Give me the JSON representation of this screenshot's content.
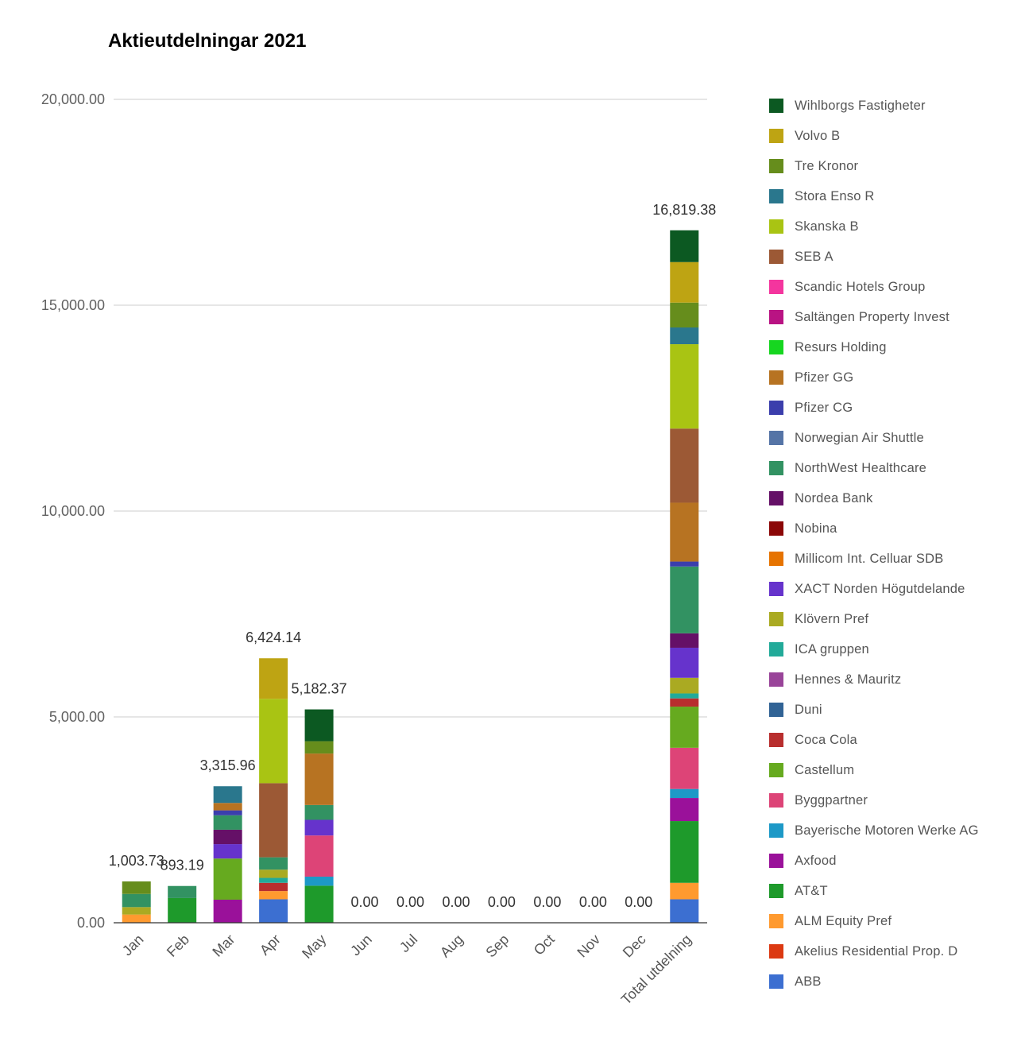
{
  "chart_data": {
    "type": "bar",
    "stacked": true,
    "title": "Aktieutdelningar 2021",
    "categories": [
      "Jan",
      "Feb",
      "Mar",
      "Apr",
      "May",
      "Jun",
      "Jul",
      "Aug",
      "Sep",
      "Oct",
      "Nov",
      "Dec",
      "Total utdelning"
    ],
    "totals": [
      "1,003.73",
      "893.19",
      "3,315.96",
      "6,424.14",
      "5,182.37",
      "0.00",
      "0.00",
      "0.00",
      "0.00",
      "0.00",
      "0.00",
      "0.00",
      "16,819.38"
    ],
    "y_ticks": [
      "0.00",
      "5,000.00",
      "10,000.00",
      "15,000.00",
      "20,000.00"
    ],
    "ylim": [
      0,
      20000
    ],
    "legend_position": "right",
    "grid": true,
    "series": [
      {
        "name": "ABB",
        "color": "#3c6fd1",
        "values": [
          0,
          0,
          0,
          570,
          0,
          0,
          0,
          0,
          0,
          0,
          0,
          0,
          570
        ]
      },
      {
        "name": "Akelius Residential Prop. D",
        "color": "#dc3912",
        "values": [
          0,
          0,
          0,
          0,
          0,
          0,
          0,
          0,
          0,
          0,
          0,
          0,
          0
        ]
      },
      {
        "name": "ALM Equity Pref",
        "color": "#ff9a2f",
        "values": [
          200,
          0,
          0,
          200,
          0,
          0,
          0,
          0,
          0,
          0,
          0,
          0,
          400
        ]
      },
      {
        "name": "AT&T",
        "color": "#1e9a2b",
        "values": [
          0,
          600,
          0,
          0,
          900,
          0,
          0,
          0,
          0,
          0,
          0,
          0,
          1500
        ]
      },
      {
        "name": "Axfood",
        "color": "#9a119a",
        "values": [
          0,
          0,
          560,
          0,
          0,
          0,
          0,
          0,
          0,
          0,
          0,
          0,
          560
        ]
      },
      {
        "name": "Bayerische Motoren Werke AG",
        "color": "#1d99c7",
        "values": [
          0,
          0,
          0,
          0,
          220,
          0,
          0,
          0,
          0,
          0,
          0,
          0,
          220
        ]
      },
      {
        "name": "Byggpartner",
        "color": "#dd4477",
        "values": [
          0,
          0,
          0,
          0,
          1000,
          0,
          0,
          0,
          0,
          0,
          0,
          0,
          1000
        ]
      },
      {
        "name": "Castellum",
        "color": "#66aa1f",
        "values": [
          0,
          0,
          1000,
          0,
          0,
          0,
          0,
          0,
          0,
          0,
          0,
          0,
          1000
        ]
      },
      {
        "name": "Coca Cola",
        "color": "#b82e2e",
        "values": [
          0,
          0,
          0,
          200,
          0,
          0,
          0,
          0,
          0,
          0,
          0,
          0,
          200
        ]
      },
      {
        "name": "Duni",
        "color": "#316395",
        "values": [
          0,
          0,
          0,
          0,
          0,
          0,
          0,
          0,
          0,
          0,
          0,
          0,
          0
        ]
      },
      {
        "name": "Hennes & Mauritz",
        "color": "#994499",
        "values": [
          0,
          0,
          0,
          0,
          0,
          0,
          0,
          0,
          0,
          0,
          0,
          0,
          0
        ]
      },
      {
        "name": "ICA gruppen",
        "color": "#22aa99",
        "values": [
          0,
          0,
          0,
          120,
          0,
          0,
          0,
          0,
          0,
          0,
          0,
          0,
          120
        ]
      },
      {
        "name": "Klövern Pref",
        "color": "#aaaa22",
        "values": [
          180,
          0,
          0,
          200,
          0,
          0,
          0,
          0,
          0,
          0,
          0,
          0,
          380
        ]
      },
      {
        "name": "XACT Norden Högutdelande",
        "color": "#6633cc",
        "values": [
          0,
          0,
          350,
          0,
          380,
          0,
          0,
          0,
          0,
          0,
          0,
          0,
          730
        ]
      },
      {
        "name": "Millicom Int. Celluar SDB",
        "color": "#e67300",
        "values": [
          0,
          0,
          0,
          0,
          0,
          0,
          0,
          0,
          0,
          0,
          0,
          0,
          0
        ]
      },
      {
        "name": "Nobina",
        "color": "#8b0707",
        "values": [
          0,
          0,
          0,
          0,
          0,
          0,
          0,
          0,
          0,
          0,
          0,
          0,
          0
        ]
      },
      {
        "name": "Nordea Bank",
        "color": "#651067",
        "values": [
          0,
          0,
          350,
          0,
          0,
          0,
          0,
          0,
          0,
          0,
          0,
          0,
          350
        ]
      },
      {
        "name": "NorthWest Healthcare",
        "color": "#329262",
        "values": [
          320,
          293.19,
          350,
          300,
          360,
          0,
          0,
          0,
          0,
          0,
          0,
          0,
          1623.19
        ]
      },
      {
        "name": "Norwegian Air Shuttle",
        "color": "#5574a6",
        "values": [
          0,
          0,
          0,
          0,
          0,
          0,
          0,
          0,
          0,
          0,
          0,
          0,
          0
        ]
      },
      {
        "name": "Pfizer CG",
        "color": "#3b3eac",
        "values": [
          0,
          0,
          120,
          0,
          0,
          0,
          0,
          0,
          0,
          0,
          0,
          0,
          120
        ]
      },
      {
        "name": "Pfizer GG",
        "color": "#b77322",
        "values": [
          0,
          0,
          180,
          0,
          1250,
          0,
          0,
          0,
          0,
          0,
          0,
          0,
          1430
        ]
      },
      {
        "name": "Resurs Holding",
        "color": "#16d620",
        "values": [
          0,
          0,
          0,
          0,
          0,
          0,
          0,
          0,
          0,
          0,
          0,
          0,
          0
        ]
      },
      {
        "name": "Saltängen Property Invest",
        "color": "#b91383",
        "values": [
          0,
          0,
          0,
          0,
          0,
          0,
          0,
          0,
          0,
          0,
          0,
          0,
          0
        ]
      },
      {
        "name": "Scandic Hotels Group",
        "color": "#f4359e",
        "values": [
          0,
          0,
          0,
          0,
          0,
          0,
          0,
          0,
          0,
          0,
          0,
          0,
          0
        ]
      },
      {
        "name": "SEB A",
        "color": "#9c5935",
        "values": [
          0,
          0,
          0,
          1800,
          0,
          0,
          0,
          0,
          0,
          0,
          0,
          0,
          1800
        ]
      },
      {
        "name": "Skanska B",
        "color": "#a9c413",
        "values": [
          0,
          0,
          0,
          2050,
          0,
          0,
          0,
          0,
          0,
          0,
          0,
          0,
          2050
        ]
      },
      {
        "name": "Stora Enso R",
        "color": "#2a778d",
        "values": [
          0,
          0,
          405.96,
          0,
          0,
          0,
          0,
          0,
          0,
          0,
          0,
          0,
          405.96
        ]
      },
      {
        "name": "Tre Kronor",
        "color": "#668d1c",
        "values": [
          303.73,
          0,
          0,
          0,
          300,
          0,
          0,
          0,
          0,
          0,
          0,
          0,
          603.73
        ]
      },
      {
        "name": "Volvo B",
        "color": "#bea413",
        "values": [
          0,
          0,
          0,
          984.14,
          0,
          0,
          0,
          0,
          0,
          0,
          0,
          0,
          984.14
        ]
      },
      {
        "name": "Wihlborgs Fastigheter",
        "color": "#0c5922",
        "values": [
          0,
          0,
          0,
          0,
          772.37,
          0,
          0,
          0,
          0,
          0,
          0,
          0,
          772.37
        ]
      }
    ]
  }
}
